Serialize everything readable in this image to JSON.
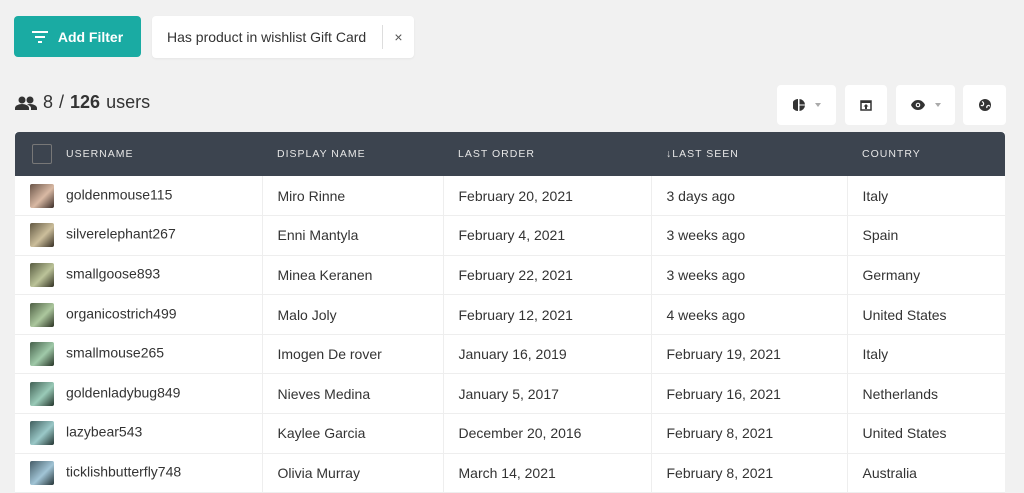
{
  "filter": {
    "add_label": "Add Filter",
    "chip_label": "Has product in wishlist Gift Card",
    "remove": "×"
  },
  "count": {
    "shown": "8",
    "separator": "/",
    "total": "126",
    "unit": "users"
  },
  "toolbar": {
    "icons": [
      "pie-chart-icon",
      "export-icon",
      "eye-icon",
      "globe-icon"
    ]
  },
  "table": {
    "columns": [
      "USERNAME",
      "DISPLAY NAME",
      "LAST ORDER",
      "↓LAST SEEN",
      "COUNTRY"
    ],
    "rows": [
      [
        "goldenmouse115",
        "Miro Rinne",
        "February 20, 2021",
        "3 days ago",
        "Italy"
      ],
      [
        "silverelephant267",
        "Enni Mantyla",
        "February 4, 2021",
        "3 weeks ago",
        "Spain"
      ],
      [
        "smallgoose893",
        "Minea Keranen",
        "February 22, 2021",
        "3 weeks ago",
        "Germany"
      ],
      [
        "organicostrich499",
        "Malo Joly",
        "February 12, 2021",
        "4 weeks ago",
        "United States"
      ],
      [
        "smallmouse265",
        "Imogen De rover",
        "January 16, 2019",
        "February 19, 2021",
        "Italy"
      ],
      [
        "goldenladybug849",
        "Nieves Medina",
        "January 5, 2017",
        "February 16, 2021",
        "Netherlands"
      ],
      [
        "lazybear543",
        "Kaylee Garcia",
        "December 20, 2016",
        "February 8, 2021",
        "United States"
      ],
      [
        "ticklishbutterfly748",
        "Olivia Murray",
        "March 14, 2021",
        "February 8, 2021",
        "Australia"
      ]
    ]
  },
  "colors": {
    "accent": "#1aaba3",
    "header": "#3c444f"
  }
}
